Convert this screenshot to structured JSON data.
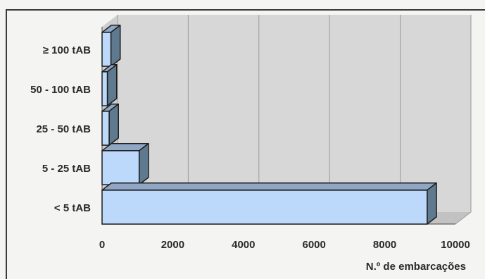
{
  "chart_data": {
    "type": "bar",
    "orientation": "horizontal",
    "title": "",
    "xlabel": "N.º de embarcações",
    "ylabel": "",
    "categories": [
      "< 5 tAB",
      "5 - 25 tAB",
      "25 - 50 tAB",
      "50 - 100 tAB",
      "≥ 100 tAB"
    ],
    "values": [
      9200,
      1050,
      200,
      150,
      250
    ],
    "xlim": [
      0,
      10000
    ],
    "xticks": [
      "0",
      "2000",
      "4000",
      "6000",
      "8000",
      "10000"
    ],
    "grid": "vertical",
    "legend": "none",
    "colors": {
      "bar_face": "#bcd8fa",
      "bar_top": "#8fa7c4",
      "bar_side": "#5f7a8f",
      "bar_outline": "#1c1c1c",
      "wall": "#d7d7d7",
      "floor": "#c2c2c2",
      "grid": "#9a9a9a"
    }
  }
}
